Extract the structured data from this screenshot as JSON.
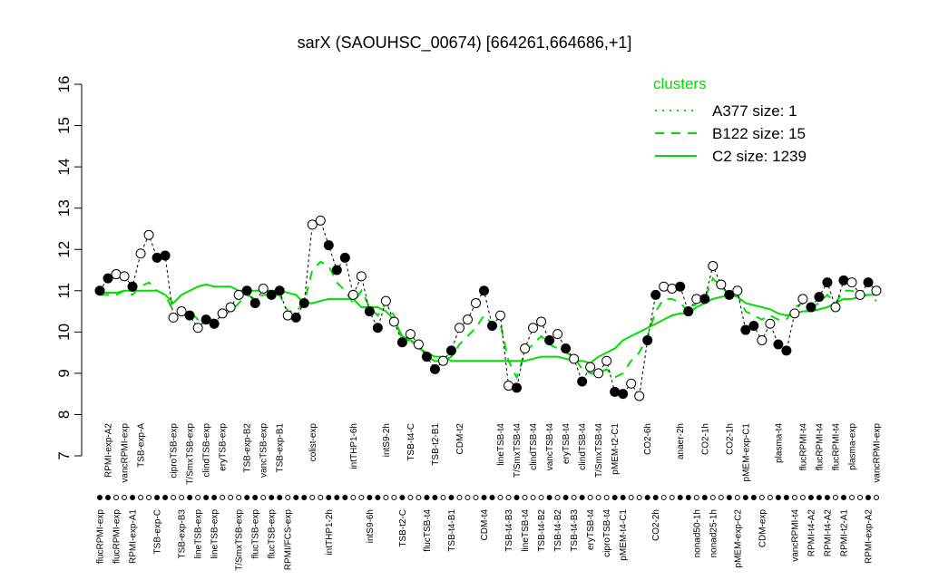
{
  "chart_data": {
    "type": "line",
    "title": "sarX (SAOUHSC_00674) [664261,664686,+1]",
    "ylim": [
      7,
      16
    ],
    "yticks": [
      7,
      8,
      9,
      10,
      11,
      12,
      13,
      14,
      15,
      16
    ],
    "categories": [
      "flucRPMI-exp",
      "RPMI-exp-A2",
      "flucRPMI-exp",
      "vancRPMI-exp",
      "RPMI-exp-A1",
      "TSB-exp-A",
      null,
      "TSB-exp-C",
      null,
      "ciproTSB-exp",
      "TSB-exp-B3",
      "T/SmxTSB-exp",
      "lineTSB-exp",
      "clindTSB-exp",
      "lineTSB-exp",
      "eryTSB-exp",
      null,
      "T/SmxTSB-exp",
      "TSB-exp-B2",
      "flucTSB-exp",
      "vancTSB-exp",
      "flucTSB-exp",
      "TSB-exp-B1",
      "RPMI/FCS-exp",
      null,
      null,
      "colist-exp",
      null,
      "intTHP1-2h",
      null,
      null,
      "intTHP1-6h",
      null,
      "intS9-6h",
      null,
      "intS9-2h",
      null,
      "TSB-t2-C",
      "TSB-t4-C",
      null,
      "flucTSB-t4",
      "TSB-t2-B1",
      null,
      "TSB-t4-B1",
      "CDM-t2",
      null,
      null,
      "CDM-t4",
      null,
      "lineTSB-t4",
      "TSB-t4-B3",
      "T/SmxTSB-t4",
      "lineTSB-t4",
      "clindTSB-t4",
      "TSB-t4-B2",
      "vancTSB-t4",
      "TSB-t4-B2",
      "eryTSB-t4",
      "TSB-t4-B3",
      "clindTSB-t4",
      "eryTSB-t4",
      "T/SmxTSB-t4",
      "ciproTSB-t4",
      "pMEM-t2-C1",
      "pMEM-t4-C1",
      null,
      null,
      "CO2-6h",
      "CO2-2h",
      null,
      null,
      "anaer-2h",
      null,
      "nonad50-1h",
      "CO2-1h",
      "nonad25-1h",
      null,
      "CO2-1h",
      "pMEM-exp-C2",
      "pMEM-exp-C1",
      null,
      "CDM-exp",
      null,
      "plasma-t4",
      null,
      "vancRPMI-t4",
      "flucRPMI-t4",
      "RPMI-t4-A2",
      "flucRPMI-t4",
      "RPMI-t4-A2",
      "flucRPMI-t4",
      "RPMI-t2-A1",
      "plasma-exp",
      null,
      "RPMI-exp-A2",
      "vancRPMI-exp"
    ],
    "values": [
      11.0,
      11.3,
      11.4,
      11.35,
      11.1,
      11.9,
      12.35,
      11.8,
      11.85,
      10.35,
      10.5,
      10.4,
      10.1,
      10.3,
      10.2,
      10.45,
      10.6,
      10.9,
      11.0,
      10.7,
      11.05,
      10.9,
      11.0,
      10.4,
      10.35,
      10.7,
      12.6,
      12.7,
      12.1,
      11.5,
      11.8,
      10.9,
      11.35,
      10.5,
      10.1,
      10.75,
      10.25,
      9.75,
      9.95,
      9.7,
      9.4,
      9.1,
      9.3,
      9.55,
      10.1,
      10.3,
      10.7,
      11.0,
      10.15,
      10.4,
      8.7,
      8.65,
      9.6,
      10.1,
      10.25,
      9.8,
      9.95,
      9.6,
      9.35,
      8.8,
      9.15,
      9.0,
      9.3,
      8.55,
      8.5,
      8.75,
      8.45,
      9.8,
      10.9,
      11.1,
      11.05,
      11.1,
      10.5,
      10.8,
      10.8,
      11.6,
      11.15,
      10.9,
      11.0,
      10.05,
      10.15,
      9.8,
      10.2,
      9.7,
      9.55,
      10.45,
      10.8,
      10.6,
      10.85,
      11.2,
      10.6,
      11.25,
      11.2,
      10.9,
      11.2,
      11.0
    ],
    "point_fills": [
      "black",
      "black",
      "white",
      "white",
      "black",
      "white",
      "white",
      "black",
      "black",
      "white",
      "white",
      "black",
      "white",
      "black",
      "black",
      "white",
      "white",
      "white",
      "black",
      "black",
      "white",
      "black",
      "black",
      "white",
      "black",
      "black",
      "white",
      "white",
      "black",
      "black",
      "black",
      "white",
      "white",
      "black",
      "black",
      "white",
      "white",
      "black",
      "white",
      "white",
      "black",
      "black",
      "white",
      "black",
      "white",
      "white",
      "white",
      "black",
      "black",
      "white",
      "white",
      "black",
      "white",
      "white",
      "white",
      "black",
      "white",
      "black",
      "white",
      "black",
      "white",
      "white",
      "white",
      "black",
      "black",
      "white",
      "white",
      "black",
      "black",
      "white",
      "white",
      "black",
      "black",
      "white",
      "black",
      "white",
      "white",
      "black",
      "white",
      "black",
      "black",
      "white",
      "white",
      "black",
      "black",
      "white",
      "white",
      "black",
      "black",
      "black",
      "white",
      "black",
      "white",
      "white",
      "black",
      "white"
    ],
    "legend_title": "clusters",
    "series": [
      {
        "name": "A377 size: 1",
        "color": "#00e000",
        "dash": "2 6"
      },
      {
        "name": "B122 size: 15",
        "color": "#00e000",
        "dash": "10 8",
        "values": [
          10.9,
          10.9,
          10.9,
          11.0,
          10.9,
          11.1,
          11.2,
          11.0,
          10.9,
          10.5,
          10.5,
          10.5,
          10.3,
          10.3,
          10.3,
          10.4,
          10.5,
          10.7,
          10.9,
          10.8,
          10.9,
          10.9,
          10.9,
          10.5,
          10.5,
          10.7,
          11.5,
          11.7,
          11.6,
          11.2,
          11.0,
          10.7,
          11.0,
          10.6,
          10.4,
          10.7,
          10.4,
          9.8,
          9.8,
          9.7,
          9.4,
          9.3,
          9.3,
          9.4,
          9.7,
          9.9,
          10.1,
          10.4,
          10.2,
          10.2,
          9.3,
          8.9,
          9.5,
          9.7,
          9.9,
          9.7,
          9.6,
          9.5,
          9.4,
          9.1,
          9.0,
          9.0,
          9.1,
          8.9,
          9.0,
          9.3,
          9.5,
          9.9,
          10.5,
          10.8,
          10.8,
          10.7,
          10.5,
          10.7,
          10.8,
          11.3,
          11.1,
          10.9,
          10.9,
          10.5,
          10.4,
          10.3,
          10.4,
          10.3,
          10.3,
          10.6,
          10.7,
          10.6,
          10.7,
          10.9,
          10.7,
          11.0,
          11.0,
          10.9,
          10.9,
          10.75
        ]
      },
      {
        "name": "C2 size: 1239",
        "color": "#00e000",
        "dash": "none",
        "values": [
          10.95,
          10.95,
          10.95,
          11.0,
          11.0,
          11.0,
          11.0,
          11.0,
          10.9,
          10.7,
          10.9,
          11.0,
          11.1,
          11.15,
          11.1,
          11.1,
          11.1,
          11.0,
          11.0,
          11.0,
          11.0,
          11.0,
          11.0,
          10.95,
          10.9,
          10.7,
          10.7,
          10.75,
          10.8,
          10.8,
          10.8,
          10.8,
          10.6,
          10.6,
          10.6,
          10.5,
          10.3,
          9.9,
          9.8,
          9.6,
          9.5,
          9.4,
          9.4,
          9.3,
          9.3,
          9.3,
          9.3,
          9.3,
          9.3,
          9.3,
          9.3,
          9.3,
          9.3,
          9.35,
          9.4,
          9.4,
          9.4,
          9.35,
          9.3,
          9.3,
          9.25,
          9.4,
          9.5,
          9.6,
          9.8,
          9.9,
          10.0,
          10.1,
          10.2,
          10.3,
          10.4,
          10.45,
          10.45,
          10.6,
          10.7,
          10.8,
          10.85,
          10.9,
          10.85,
          10.7,
          10.65,
          10.6,
          10.55,
          10.45,
          10.4,
          10.45,
          10.5,
          10.5,
          10.55,
          10.6,
          10.7,
          10.8,
          10.8,
          10.85,
          10.9,
          10.9
        ]
      }
    ]
  }
}
